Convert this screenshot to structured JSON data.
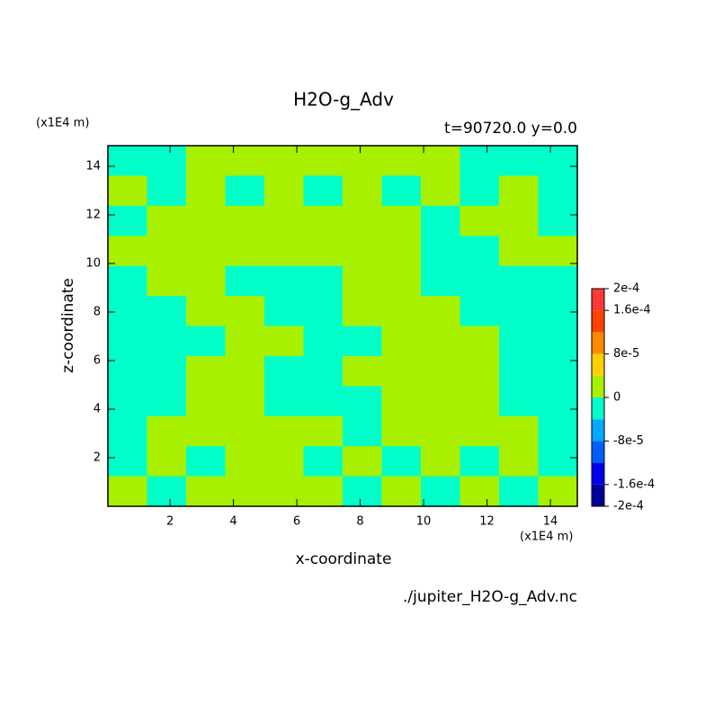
{
  "chart_data": {
    "type": "contour",
    "title": "H2O-g_Adv",
    "subtitle": "t=90720.0 y=0.0",
    "x_label": "x-coordinate",
    "y_label": "z-coordinate",
    "x_unit": "(x1E4 m)",
    "y_unit": "(x1E4 m)",
    "footer": "./jupiter_H2O-g_Adv.nc",
    "xlim": [
      0.04,
      14.85
    ],
    "ylim": [
      0,
      14.85
    ],
    "xticks": [
      2,
      4,
      6,
      8,
      10,
      12,
      14
    ],
    "yticks": [
      2,
      4,
      6,
      8,
      10,
      12,
      14
    ],
    "field": [
      [
        -2e-05,
        -2e-05,
        2e-05,
        2e-05,
        2e-05,
        2e-05,
        2e-05,
        2e-05,
        2e-05,
        -2e-05,
        -2e-05,
        -2e-05
      ],
      [
        2e-05,
        -2e-05,
        2e-05,
        -2e-05,
        2e-05,
        -2e-05,
        2e-05,
        -2e-05,
        2e-05,
        -2e-05,
        2e-05,
        -2e-05
      ],
      [
        -2e-05,
        2e-05,
        2e-05,
        2e-05,
        2e-05,
        2e-05,
        2e-05,
        2e-05,
        -2e-05,
        2e-05,
        2e-05,
        -2e-05
      ],
      [
        2e-05,
        2e-05,
        2e-05,
        2e-05,
        2e-05,
        2e-05,
        2e-05,
        2e-05,
        -2e-05,
        -2e-05,
        2e-05,
        2e-05
      ],
      [
        -2e-05,
        2e-05,
        2e-05,
        -2e-05,
        -2e-05,
        -2e-05,
        2e-05,
        2e-05,
        -2e-05,
        -2e-05,
        -2e-05,
        -2e-05
      ],
      [
        -2e-05,
        -2e-05,
        2e-05,
        2e-05,
        -2e-05,
        -2e-05,
        2e-05,
        2e-05,
        2e-05,
        -2e-05,
        -2e-05,
        -2e-05
      ],
      [
        -2e-05,
        -2e-05,
        -2e-05,
        2e-05,
        2e-05,
        -2e-05,
        -2e-05,
        2e-05,
        2e-05,
        2e-05,
        -2e-05,
        -2e-05
      ],
      [
        -2e-05,
        -2e-05,
        2e-05,
        2e-05,
        -2e-05,
        -2e-05,
        2e-05,
        2e-05,
        2e-05,
        2e-05,
        -2e-05,
        -2e-05
      ],
      [
        -2e-05,
        -2e-05,
        2e-05,
        2e-05,
        -2e-05,
        -2e-05,
        -2e-05,
        2e-05,
        2e-05,
        2e-05,
        -2e-05,
        -2e-05
      ],
      [
        -2e-05,
        2e-05,
        2e-05,
        2e-05,
        2e-05,
        2e-05,
        -2e-05,
        2e-05,
        2e-05,
        2e-05,
        2e-05,
        -2e-05
      ],
      [
        -2e-05,
        2e-05,
        -2e-05,
        2e-05,
        2e-05,
        -2e-05,
        2e-05,
        -2e-05,
        2e-05,
        -2e-05,
        2e-05,
        -2e-05
      ],
      [
        2e-05,
        -2e-05,
        2e-05,
        2e-05,
        2e-05,
        2e-05,
        -2e-05,
        2e-05,
        -2e-05,
        2e-05,
        -2e-05,
        2e-05
      ]
    ],
    "levels": [
      -0.0002,
      -0.00016,
      -0.00012,
      -8e-05,
      -4e-05,
      0,
      4e-05,
      8e-05,
      0.00012,
      0.00016,
      0.0002
    ],
    "colors": [
      "#00009c",
      "#0000f0",
      "#0060ff",
      "#00a8ff",
      "#00ffc8",
      "#a8f000",
      "#ffd000",
      "#ff8800",
      "#ff4400",
      "#ff3838"
    ],
    "colorbar_ticks": [
      {
        "value": 0.0002,
        "label": "2e-4"
      },
      {
        "value": 0.00016,
        "label": "1.6e-4"
      },
      {
        "value": 8e-05,
        "label": "8e-5"
      },
      0,
      {
        "value": -8e-05,
        "label": "-8e-5"
      },
      {
        "value": -0.00016,
        "label": "-1.6e-4"
      },
      {
        "value": -0.0002,
        "label": "-2e-4"
      }
    ]
  }
}
